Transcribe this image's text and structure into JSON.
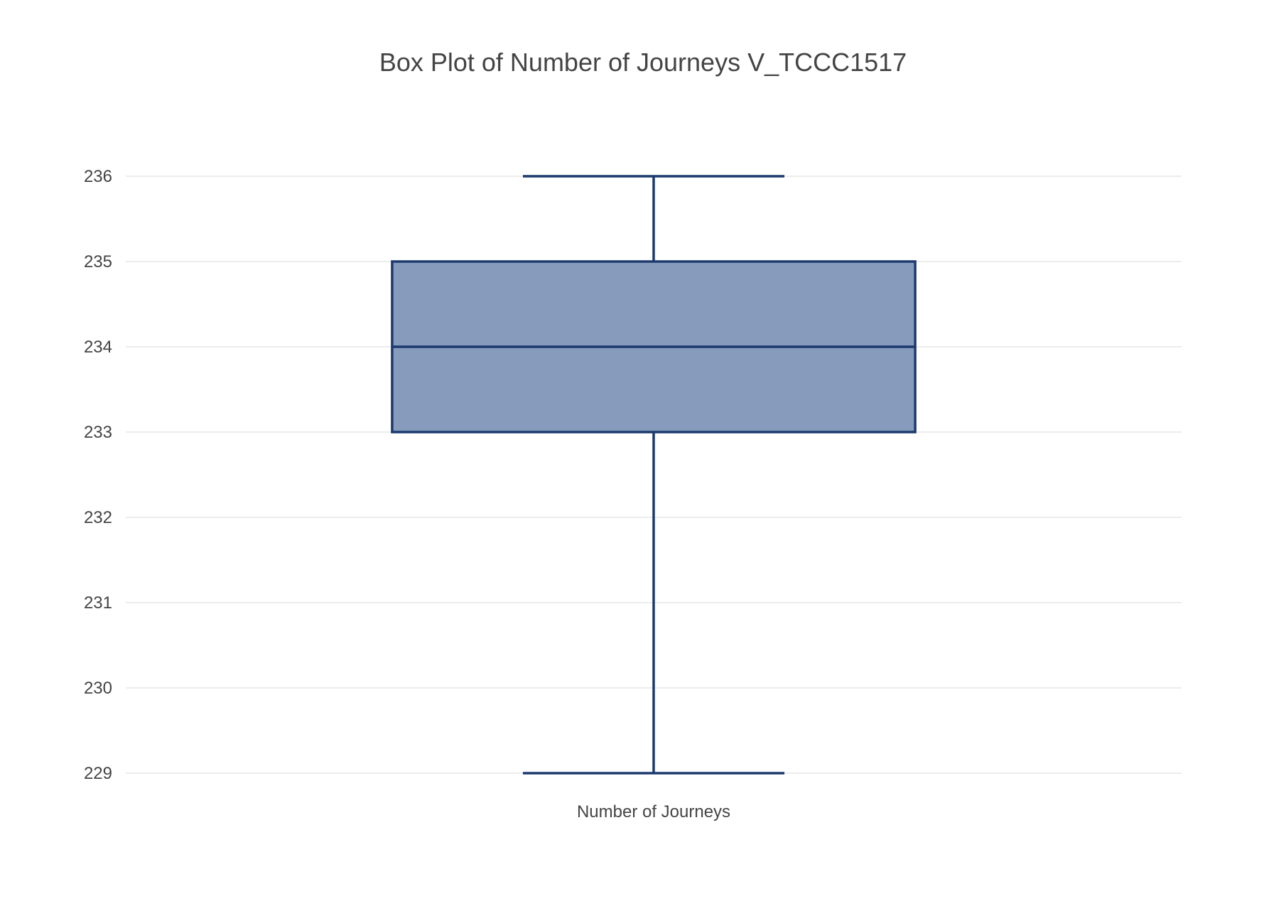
{
  "chart_data": {
    "type": "box",
    "title": "Box Plot of Number of Journeys V_TCCC1517",
    "xlabel": "",
    "ylabel": "",
    "categories": [
      "Number of Journeys"
    ],
    "series": [
      {
        "category": "Number of Journeys",
        "min": 229,
        "q1": 233,
        "median": 234,
        "q3": 235,
        "max": 236
      }
    ],
    "ylim": [
      229,
      236
    ],
    "y_ticks": [
      229,
      230,
      231,
      232,
      233,
      234,
      235,
      236
    ],
    "y_tick_labels": [
      "229",
      "230",
      "231",
      "232",
      "233",
      "234",
      "235",
      "236"
    ],
    "grid": true,
    "legend": "none",
    "colors": {
      "box_fill": "#879bbc",
      "box_line": "#1c3a6e",
      "grid": "#e6e6e6",
      "text": "#444444",
      "background": "#ffffff"
    }
  }
}
